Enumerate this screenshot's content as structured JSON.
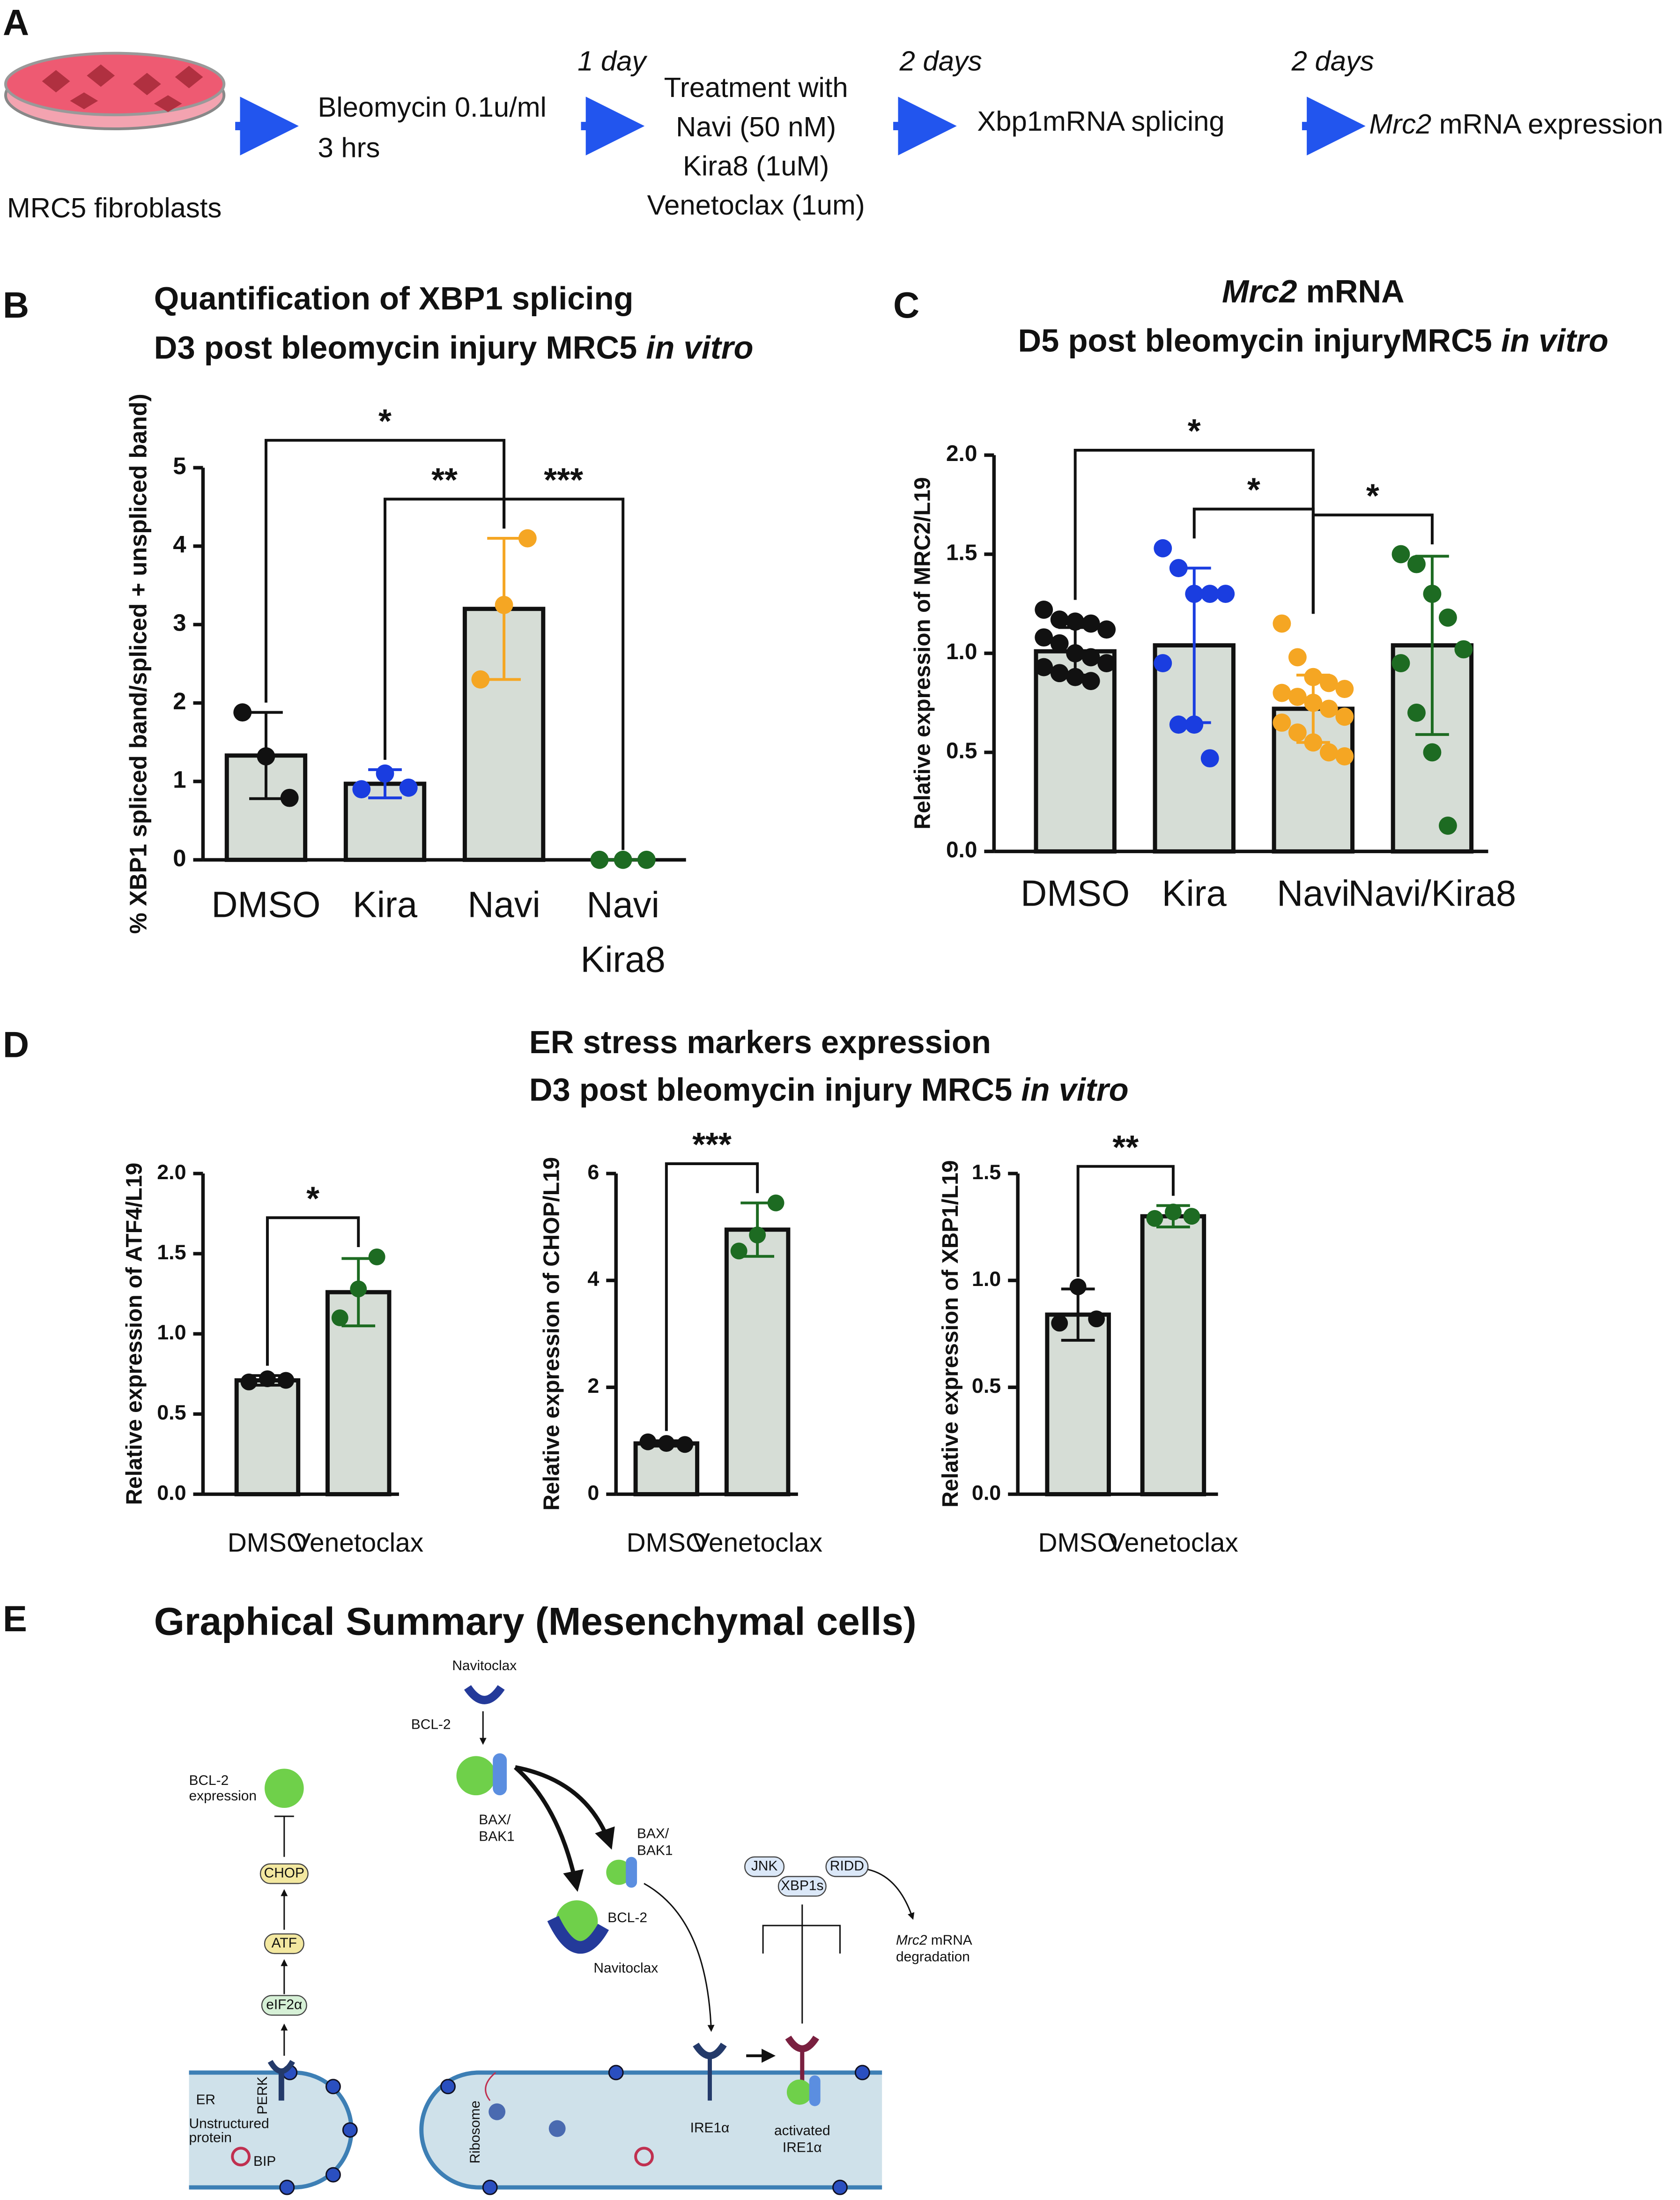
{
  "panel_labels": [
    "A",
    "B",
    "C",
    "D",
    "E"
  ],
  "workflow": {
    "cell_label": "MRC5 fibroblasts",
    "step1": [
      "Bleomycin 0.1u/ml",
      "3 hrs"
    ],
    "delay1": "1 day",
    "step2": [
      "Treatment with",
      "Navi (50 nM)",
      "Kira8 (1uM)",
      "Venetoclax (1um)"
    ],
    "delay2": "2 days",
    "step3": "Xbp1mRNA splicing",
    "delay3": "2 days",
    "step4": [
      {
        "text": "Mrc2",
        "italic": true
      },
      {
        "text": " mRNA expression"
      }
    ]
  },
  "panel_d": {
    "title": [
      [
        {
          "text": "ER stress markers expression"
        }
      ],
      [
        {
          "text": "D3 post bleomycin injury MRC5 "
        },
        {
          "text": "in vitro",
          "italic": true
        }
      ]
    ]
  },
  "chart_data": [
    {
      "type": "bar",
      "title": [
        [
          {
            "text": "Quantification of XBP1 splicing"
          }
        ],
        [
          {
            "text": "D3 post bleomycin injury MRC5 "
          },
          {
            "text": "in vitro",
            "italic": true
          }
        ]
      ],
      "y_label": "% XBP1 spliced band/spliced + unspliced band)",
      "categories": [
        "DMSO",
        "Kira",
        "Navi",
        [
          "Navi",
          "Kira8"
        ]
      ],
      "values": [
        1.33,
        0.97,
        3.2,
        0
      ],
      "errors": [
        0.55,
        0.18,
        0.9,
        0
      ],
      "points": [
        [
          1.88,
          1.32,
          0.79
        ],
        [
          0.9,
          1.1,
          0.92
        ],
        [
          2.3,
          3.25,
          4.1
        ],
        [
          0,
          0,
          0
        ]
      ],
      "colors": [
        "#111111",
        "#1a3de0",
        "#f5a623",
        "#1d6b22"
      ],
      "bar_color": "#d6ddd6",
      "ylim": [
        0,
        5
      ],
      "yticks": [
        0,
        1,
        2,
        3,
        4,
        5
      ],
      "significance": [
        {
          "pair": [
            0,
            2
          ],
          "label": "*"
        },
        {
          "pair": [
            1,
            2
          ],
          "label": "**"
        },
        {
          "pair": [
            2,
            3
          ],
          "label": "***"
        }
      ]
    },
    {
      "type": "bar",
      "title": [
        [
          {
            "text": "Mrc2",
            "italic": true
          },
          {
            "text": " mRNA"
          }
        ],
        [
          {
            "text": "D5 post bleomycin injuryMRC5 "
          },
          {
            "text": "in vitro",
            "italic": true
          }
        ]
      ],
      "y_label": "Relative expression of MRC2/L19",
      "categories": [
        "DMSO",
        "Kira",
        "Navi",
        "Navi/Kira8"
      ],
      "values": [
        1.01,
        1.04,
        0.72,
        1.04
      ],
      "errors": [
        0.12,
        0.39,
        0.17,
        0.45
      ],
      "points": [
        [
          1.22,
          1.17,
          1.16,
          1.15,
          1.12,
          1.08,
          1.05,
          1.0,
          0.98,
          0.95,
          0.93,
          0.9,
          0.88,
          0.86
        ],
        [
          1.53,
          1.43,
          1.3,
          1.3,
          1.3,
          0.95,
          0.64,
          0.64,
          0.47
        ],
        [
          1.15,
          0.98,
          0.88,
          0.85,
          0.82,
          0.8,
          0.78,
          0.75,
          0.72,
          0.68,
          0.65,
          0.6,
          0.55,
          0.5,
          0.48
        ],
        [
          1.5,
          1.45,
          1.3,
          1.18,
          1.02,
          0.95,
          0.7,
          0.5,
          0.13
        ]
      ],
      "colors": [
        "#111111",
        "#1a3de0",
        "#f5a623",
        "#1d6b22"
      ],
      "bar_color": "#d6ddd6",
      "ylim": [
        0,
        2
      ],
      "yticks": [
        {
          "value": 0,
          "label": "0.0"
        },
        {
          "value": 0.5,
          "label": "0.5"
        },
        {
          "value": 1,
          "label": "1.0"
        },
        {
          "value": 1.5,
          "label": "1.5"
        },
        {
          "value": 2,
          "label": "2.0"
        }
      ],
      "significance": [
        {
          "pair": [
            0,
            2
          ],
          "label": "*"
        },
        {
          "pair": [
            1,
            2
          ],
          "label": "*"
        },
        {
          "pair": [
            2,
            3
          ],
          "label": "*"
        }
      ]
    },
    {
      "type": "bar",
      "y_label": "Relative expression of ATF4/L19",
      "categories": [
        "DMSO",
        "Venetoclax"
      ],
      "values": [
        0.71,
        1.26
      ],
      "errors": [
        0.03,
        0.21
      ],
      "points": [
        [
          0.7,
          0.72,
          0.71
        ],
        [
          1.1,
          1.28,
          1.48
        ]
      ],
      "colors": [
        "#111111",
        "#1d6b22"
      ],
      "bar_color": "#d6ddd6",
      "ylim": [
        0,
        2
      ],
      "yticks": [
        {
          "value": 0,
          "label": "0.0"
        },
        {
          "value": 0.5,
          "label": "0.5"
        },
        {
          "value": 1,
          "label": "1.0"
        },
        {
          "value": 1.5,
          "label": "1.5"
        },
        {
          "value": 2,
          "label": "2.0"
        }
      ],
      "significance": [
        {
          "pair": [
            0,
            1
          ],
          "label": "*"
        }
      ]
    },
    {
      "type": "bar",
      "y_label": "Relative expression of CHOP/L19",
      "categories": [
        "DMSO",
        "Venetoclax"
      ],
      "values": [
        0.95,
        4.95
      ],
      "errors": [
        0.05,
        0.5
      ],
      "points": [
        [
          0.98,
          0.95,
          0.93
        ],
        [
          4.55,
          4.85,
          5.45
        ]
      ],
      "colors": [
        "#111111",
        "#1d6b22"
      ],
      "bar_color": "#d6ddd6",
      "ylim": [
        0,
        6
      ],
      "yticks": [
        0,
        2,
        4,
        6
      ],
      "significance": [
        {
          "pair": [
            0,
            1
          ],
          "label": "***"
        }
      ]
    },
    {
      "type": "bar",
      "y_label": "Relative expression of XBP1/L19",
      "categories": [
        "DMSO",
        "Venetoclax"
      ],
      "values": [
        0.84,
        1.3
      ],
      "errors": [
        0.12,
        0.05
      ],
      "points": [
        [
          0.8,
          0.97,
          0.82
        ],
        [
          1.29,
          1.32,
          1.3
        ]
      ],
      "colors": [
        "#111111",
        "#1d6b22"
      ],
      "bar_color": "#d6ddd6",
      "ylim": [
        0,
        1.5
      ],
      "yticks": [
        {
          "value": 0,
          "label": "0.0"
        },
        {
          "value": 0.5,
          "label": "0.5"
        },
        {
          "value": 1,
          "label": "1.0"
        },
        {
          "value": 1.5,
          "label": "1.5"
        }
      ],
      "significance": [
        {
          "pair": [
            0,
            1
          ],
          "label": "**"
        }
      ]
    }
  ],
  "summary": {
    "title": "Graphical Summary (Mesenchymal cells)",
    "navitoclax_top": "Navitoclax",
    "bcl2_top": "BCL-2",
    "baxbak_1": [
      "BAX/",
      "BAK1"
    ],
    "baxbak_2": [
      "BAX/",
      "BAK1"
    ],
    "bcl2_bound": "BCL-2",
    "navitoclax_bound": "Navitoclax",
    "bcl2_expression": [
      "BCL-2",
      "expression"
    ],
    "chop": "CHOP",
    "atf": "ATF",
    "eif2a": "eIF2α",
    "perk": "PERK",
    "er": "ER",
    "unstructured": [
      "Unstructured",
      "protein"
    ],
    "bip": "BIP",
    "ribosome": "Ribosome",
    "ire1a": "IRE1α",
    "activated": [
      "activated",
      "IRE1α"
    ],
    "jnk": "JNK",
    "ridd": "RIDD",
    "xbp1s": "XBP1s",
    "degradation": [
      {
        "text": "Mrc2",
        "italic": true
      },
      {
        "text": " mRNA"
      }
    ],
    "degradation_2": "degradation"
  }
}
